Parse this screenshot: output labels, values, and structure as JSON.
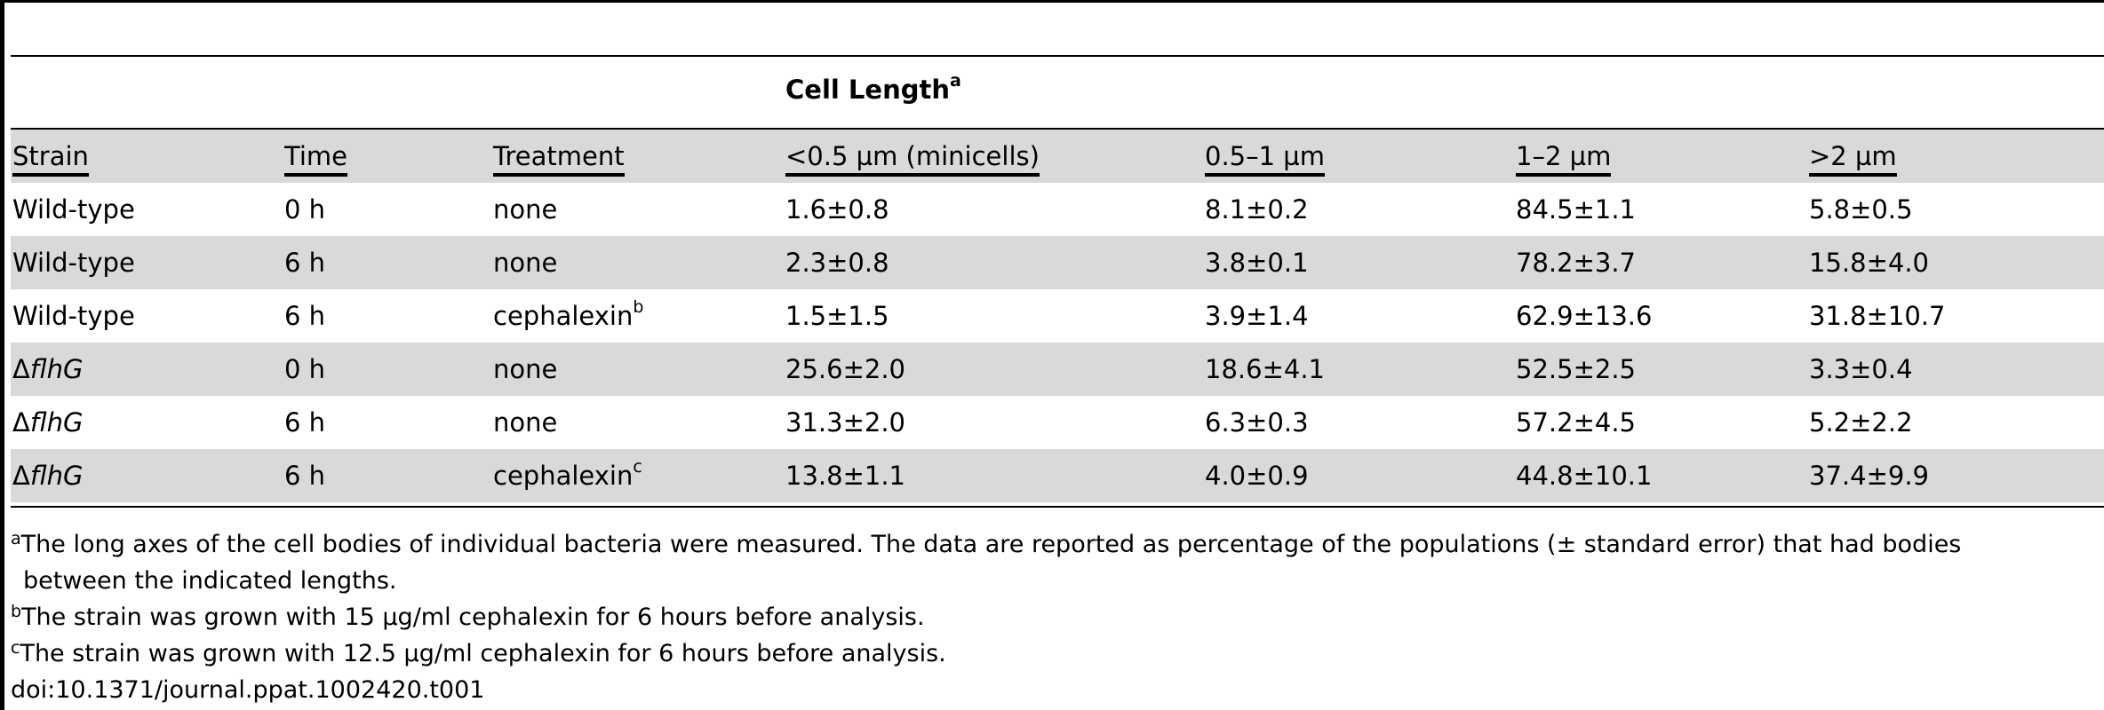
{
  "table": {
    "group_header": "Cell Length",
    "group_header_sup": "a",
    "columns": [
      "Strain",
      "Time",
      "Treatment",
      "<0.5 µm (minicells)",
      "0.5–1 µm",
      "1–2 µm",
      ">2 µm"
    ],
    "rows": [
      {
        "strain_prefix": "",
        "strain_italic": "",
        "strain_plain": "Wild-type",
        "time": "0 h",
        "treatment": "none",
        "treatment_sup": "",
        "c1": "1.6±0.8",
        "c2": "8.1±0.2",
        "c3": "84.5±1.1",
        "c4": "5.8±0.5"
      },
      {
        "strain_prefix": "",
        "strain_italic": "",
        "strain_plain": "Wild-type",
        "time": "6 h",
        "treatment": "none",
        "treatment_sup": "",
        "c1": "2.3±0.8",
        "c2": "3.8±0.1",
        "c3": "78.2±3.7",
        "c4": "15.8±4.0"
      },
      {
        "strain_prefix": "",
        "strain_italic": "",
        "strain_plain": "Wild-type",
        "time": "6 h",
        "treatment": "cephalexin",
        "treatment_sup": "b",
        "c1": "1.5±1.5",
        "c2": "3.9±1.4",
        "c3": "62.9±13.6",
        "c4": "31.8±10.7"
      },
      {
        "strain_prefix": "Δ",
        "strain_italic": "flhG",
        "strain_plain": "",
        "time": "0 h",
        "treatment": "none",
        "treatment_sup": "",
        "c1": "25.6±2.0",
        "c2": "18.6±4.1",
        "c3": "52.5±2.5",
        "c4": "3.3±0.4"
      },
      {
        "strain_prefix": "Δ",
        "strain_italic": "flhG",
        "strain_plain": "",
        "time": "6 h",
        "treatment": "none",
        "treatment_sup": "",
        "c1": "31.3±2.0",
        "c2": "6.3±0.3",
        "c3": "57.2±4.5",
        "c4": "5.2±2.2"
      },
      {
        "strain_prefix": "Δ",
        "strain_italic": "flhG",
        "strain_plain": "",
        "time": "6 h",
        "treatment": "cephalexin",
        "treatment_sup": "c",
        "c1": "13.8±1.1",
        "c2": "4.0±0.9",
        "c3": "44.8±10.1",
        "c4": "37.4±9.9"
      }
    ]
  },
  "footnotes": {
    "a_mark": "a",
    "a_line1": "The long axes of the cell bodies of individual bacteria were measured. The data are reported as percentage of the populations (± standard error) that had bodies",
    "a_line2": "between the indicated lengths.",
    "b_mark": "b",
    "b_text": "The strain was grown with 15 µg/ml cephalexin for 6 hours before analysis.",
    "c_mark": "c",
    "c_text": "The strain was grown with 12.5 µg/ml cephalexin for 6 hours before analysis.",
    "doi": "doi:10.1371/journal.ppat.1002420.t001"
  }
}
